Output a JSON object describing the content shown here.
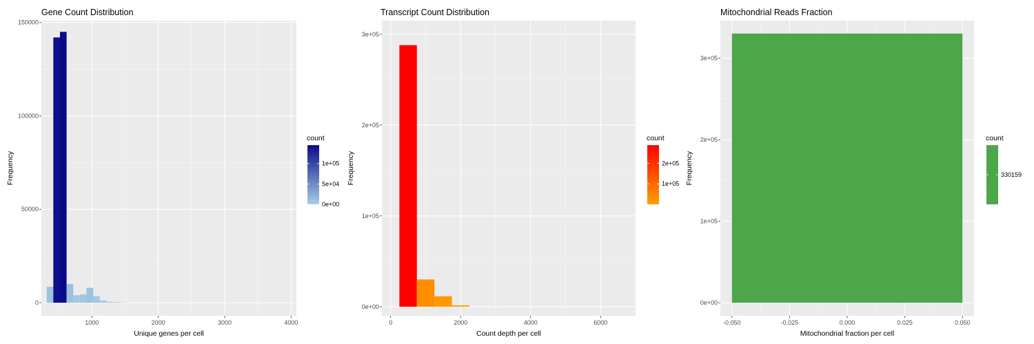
{
  "chart_data": [
    {
      "type": "bar",
      "title": "Gene Count Distribution",
      "xlabel": "Unique genes per cell",
      "ylabel": "Frequency",
      "xlim": [
        240,
        4080
      ],
      "ylim": [
        -7000,
        151000
      ],
      "x_ticks": [
        1000,
        2000,
        3000,
        4000
      ],
      "x_tick_labels": [
        "1000",
        "2000",
        "3000",
        "4000"
      ],
      "y_ticks": [
        0,
        50000,
        100000,
        150000
      ],
      "y_tick_labels": [
        "0",
        "50000",
        "100000",
        "150000"
      ],
      "grid": true,
      "legend": {
        "title": "count",
        "position": "right",
        "low_color": "#a6cee3",
        "high_color": "#0b0b8a",
        "max": 145000,
        "ticks": [
          0,
          50000,
          100000
        ],
        "tick_labels": [
          "0e+00",
          "5e+04",
          "1e+05"
        ]
      },
      "bins": [
        {
          "x0": 320,
          "x1": 420,
          "count": 8500
        },
        {
          "x0": 420,
          "x1": 520,
          "count": 142000
        },
        {
          "x0": 520,
          "x1": 620,
          "count": 145000
        },
        {
          "x0": 620,
          "x1": 720,
          "count": 10000
        },
        {
          "x0": 720,
          "x1": 820,
          "count": 4000
        },
        {
          "x0": 820,
          "x1": 920,
          "count": 4500
        },
        {
          "x0": 920,
          "x1": 1020,
          "count": 8000
        },
        {
          "x0": 1020,
          "x1": 1120,
          "count": 3500
        },
        {
          "x0": 1120,
          "x1": 1220,
          "count": 1200
        },
        {
          "x0": 1220,
          "x1": 1320,
          "count": 500
        },
        {
          "x0": 1320,
          "x1": 1420,
          "count": 300
        },
        {
          "x0": 1420,
          "x1": 1520,
          "count": 150
        }
      ]
    },
    {
      "type": "bar",
      "title": "Transcript Count Distribution",
      "xlabel": "Count depth per cell",
      "ylabel": "Frequency",
      "xlim": [
        -250,
        7000
      ],
      "ylim": [
        -10000,
        315000
      ],
      "x_ticks": [
        0,
        2000,
        4000,
        6000
      ],
      "x_tick_labels": [
        "0",
        "2000",
        "4000",
        "6000"
      ],
      "y_ticks": [
        0,
        100000,
        200000,
        300000
      ],
      "y_tick_labels": [
        "0e+00",
        "1e+05",
        "2e+05",
        "3e+05"
      ],
      "grid": true,
      "legend": {
        "title": "count",
        "position": "right",
        "low_color": "#ff9f00",
        "high_color": "#ff0000",
        "max": 288000,
        "ticks": [
          100000,
          200000
        ],
        "tick_labels": [
          "1e+05",
          "2e+05"
        ]
      },
      "bins": [
        {
          "x0": 250,
          "x1": 750,
          "count": 288000
        },
        {
          "x0": 750,
          "x1": 1250,
          "count": 30000
        },
        {
          "x0": 1250,
          "x1": 1750,
          "count": 11500
        },
        {
          "x0": 1750,
          "x1": 2250,
          "count": 1500
        }
      ]
    },
    {
      "type": "bar",
      "title": "Mitochondrial Reads Fraction",
      "xlabel": "Mitochondrial fraction per cell",
      "ylabel": "Frequency",
      "xlim": [
        -0.055,
        0.055
      ],
      "ylim": [
        -16000,
        346000
      ],
      "x_ticks": [
        -0.05,
        -0.025,
        0,
        0.025,
        0.05
      ],
      "x_tick_labels": [
        "-0.050",
        "-0.025",
        "0.000",
        "0.025",
        "0.050"
      ],
      "y_ticks": [
        0,
        100000,
        200000,
        300000
      ],
      "y_tick_labels": [
        "0e+00",
        "1e+05",
        "2e+05",
        "3e+05"
      ],
      "grid": true,
      "legend": {
        "title": "count",
        "position": "right",
        "low_color": "#4ea64a",
        "high_color": "#4ea64a",
        "max": 330159,
        "ticks": [
          330159
        ],
        "tick_labels": [
          "330159"
        ]
      },
      "bins": [
        {
          "x0": -0.05,
          "x1": 0.05,
          "count": 330159
        }
      ]
    }
  ]
}
